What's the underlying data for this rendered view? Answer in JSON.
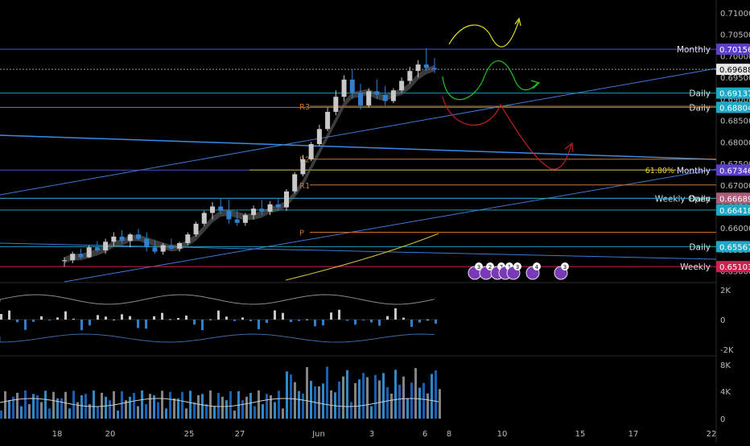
{
  "chart_data": {
    "type": "candlestick",
    "instrument_hint": "forex",
    "x_ticks": [
      "18",
      "20",
      "25",
      "27",
      "Jun",
      "3",
      "6",
      "8",
      "10",
      "15",
      "17",
      "22"
    ],
    "price_axis_ticks": [
      "0.71000",
      "0.70500",
      "0.70000",
      "0.69500",
      "0.69000",
      "0.68500",
      "0.68000",
      "0.67500",
      "0.67000",
      "0.66500",
      "0.66000",
      "0.65500",
      "0.65000"
    ],
    "ylim": [
      0.6475,
      0.713
    ],
    "current_price": 0.69688,
    "levels": [
      {
        "label": "Monthly",
        "value": 0.70156,
        "badge_color": "#5b3fc8",
        "line_color": "#5050c8"
      },
      {
        "label": "",
        "value": 0.69688,
        "badge_color": "#e6e6e6",
        "line_color": "#9a9a9a"
      },
      {
        "label": "Daily",
        "value": 0.69137,
        "badge_color": "#1ea8c8",
        "line_color": "#1e9ab8"
      },
      {
        "label": "Daily",
        "value": 0.68804,
        "badge_color": "#1ea8c8",
        "line_color": "#1e9ab8"
      },
      {
        "label": "Monthly",
        "value": 0.67346,
        "badge_color": "#5b3fc8",
        "line_color": "#5050c8"
      },
      {
        "label": "Weekly Open",
        "value": 0.66689,
        "badge_color": "#c77b95",
        "line_color": "#b06a80"
      },
      {
        "label": "Daily",
        "value": 0.66689,
        "badge_color": "#b05a7a",
        "line_color": "#1e9ab8"
      },
      {
        "label": "",
        "value": 0.66418,
        "badge_color": "#1ea8c8",
        "line_color": "#1e9ab8"
      },
      {
        "label": "Daily",
        "value": 0.65567,
        "badge_color": "#1ea8c8",
        "line_color": "#1e9ab8"
      },
      {
        "label": "Weekly",
        "value": 0.65103,
        "badge_color": "#d02050",
        "line_color": "#d02050"
      }
    ],
    "pivots": [
      {
        "label": "R3",
        "value": 0.6883
      },
      {
        "label": "R2",
        "value": 0.676
      },
      {
        "label": "R1",
        "value": 0.67
      },
      {
        "label": "P",
        "value": 0.659
      }
    ],
    "fib_level": {
      "label": "61.80%",
      "value": 0.6735
    },
    "oscillator": {
      "ticks": [
        "2K",
        "0",
        "-2K"
      ]
    },
    "volume": {
      "ticks": [
        "8K",
        "4K",
        "0"
      ]
    },
    "event_badges": [
      "3",
      "2",
      "7",
      "1",
      "3",
      "4",
      "3"
    ],
    "candles_approx": [
      [
        0.6523,
        0.6532,
        0.651,
        0.6525
      ],
      [
        0.6525,
        0.6545,
        0.6518,
        0.654
      ],
      [
        0.654,
        0.6552,
        0.6528,
        0.6532
      ],
      [
        0.6532,
        0.656,
        0.653,
        0.6555
      ],
      [
        0.6555,
        0.657,
        0.6545,
        0.6548
      ],
      [
        0.6548,
        0.6575,
        0.654,
        0.6568
      ],
      [
        0.6568,
        0.659,
        0.6558,
        0.658
      ],
      [
        0.658,
        0.6595,
        0.6565,
        0.657
      ],
      [
        0.657,
        0.6588,
        0.6555,
        0.6585
      ],
      [
        0.6585,
        0.6598,
        0.657,
        0.6575
      ],
      [
        0.6575,
        0.659,
        0.6545,
        0.6555
      ],
      [
        0.6555,
        0.6572,
        0.654,
        0.6545
      ],
      [
        0.6545,
        0.6565,
        0.6538,
        0.656
      ],
      [
        0.656,
        0.6575,
        0.6548,
        0.6552
      ],
      [
        0.6552,
        0.6568,
        0.6545,
        0.6565
      ],
      [
        0.6565,
        0.659,
        0.656,
        0.6585
      ],
      [
        0.6585,
        0.6615,
        0.658,
        0.661
      ],
      [
        0.661,
        0.664,
        0.6605,
        0.6635
      ],
      [
        0.6635,
        0.666,
        0.662,
        0.665
      ],
      [
        0.665,
        0.6668,
        0.6632,
        0.664
      ],
      [
        0.664,
        0.6665,
        0.661,
        0.662
      ],
      [
        0.662,
        0.664,
        0.6605,
        0.6612
      ],
      [
        0.6612,
        0.6635,
        0.6605,
        0.663
      ],
      [
        0.663,
        0.6652,
        0.662,
        0.6645
      ],
      [
        0.6645,
        0.6665,
        0.663,
        0.6638
      ],
      [
        0.6638,
        0.6662,
        0.663,
        0.6655
      ],
      [
        0.6655,
        0.6668,
        0.664,
        0.6648
      ],
      [
        0.6648,
        0.669,
        0.664,
        0.6685
      ],
      [
        0.6685,
        0.673,
        0.668,
        0.6725
      ],
      [
        0.6725,
        0.677,
        0.672,
        0.676
      ],
      [
        0.676,
        0.68,
        0.6755,
        0.6795
      ],
      [
        0.6795,
        0.684,
        0.679,
        0.683
      ],
      [
        0.683,
        0.688,
        0.6825,
        0.687
      ],
      [
        0.687,
        0.692,
        0.6862,
        0.6905
      ],
      [
        0.6905,
        0.6955,
        0.6895,
        0.6945
      ],
      [
        0.6945,
        0.697,
        0.69,
        0.6915
      ],
      [
        0.6915,
        0.6935,
        0.6875,
        0.6885
      ],
      [
        0.6885,
        0.6925,
        0.688,
        0.6918
      ],
      [
        0.6918,
        0.6945,
        0.69,
        0.691
      ],
      [
        0.691,
        0.693,
        0.6885,
        0.6895
      ],
      [
        0.6895,
        0.6925,
        0.689,
        0.692
      ],
      [
        0.692,
        0.695,
        0.6915,
        0.6942
      ],
      [
        0.6942,
        0.6975,
        0.6935,
        0.6965
      ],
      [
        0.6965,
        0.699,
        0.695,
        0.698
      ],
      [
        0.698,
        0.7018,
        0.6965,
        0.6972
      ],
      [
        0.6972,
        0.6995,
        0.696,
        0.6969
      ]
    ]
  }
}
